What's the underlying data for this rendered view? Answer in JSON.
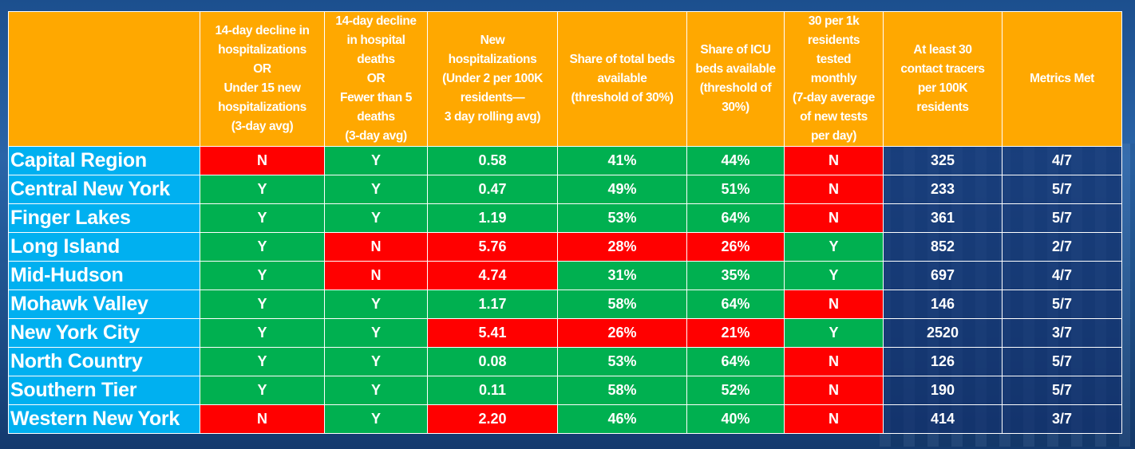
{
  "headers": [
    "",
    "14-day decline in hospitalizations OR Under 15 new hospitalizations (3-day avg)",
    "14-day decline in hospital deaths OR Fewer than 5 deaths (3-day avg)",
    "New hospitalizations (Under 2 per 100K residents— 3 day rolling avg)",
    "Share of total beds available (threshold of 30%)",
    "Share of ICU beds available (threshold of 30%)",
    "30 per 1k residents tested monthly (7-day average of new tests per day)",
    "At least 30 contact tracers per 100K residents",
    "Metrics Met"
  ],
  "colors": {
    "header": "#ffa800",
    "region": "#00b0f0",
    "pass": "#00b050",
    "fail": "#ff0000"
  },
  "rows": [
    {
      "region": "Capital Region",
      "cells": [
        [
          "N",
          "N"
        ],
        [
          "Y",
          "Y"
        ],
        [
          "0.58",
          "Y"
        ],
        [
          "41%",
          "Y"
        ],
        [
          "44%",
          "Y"
        ],
        [
          "N",
          "N"
        ]
      ],
      "tracers": "325",
      "met": "4/7"
    },
    {
      "region": "Central New York",
      "cells": [
        [
          "Y",
          "Y"
        ],
        [
          "Y",
          "Y"
        ],
        [
          "0.47",
          "Y"
        ],
        [
          "49%",
          "Y"
        ],
        [
          "51%",
          "Y"
        ],
        [
          "N",
          "N"
        ]
      ],
      "tracers": "233",
      "met": "5/7"
    },
    {
      "region": "Finger Lakes",
      "cells": [
        [
          "Y",
          "Y"
        ],
        [
          "Y",
          "Y"
        ],
        [
          "1.19",
          "Y"
        ],
        [
          "53%",
          "Y"
        ],
        [
          "64%",
          "Y"
        ],
        [
          "N",
          "N"
        ]
      ],
      "tracers": "361",
      "met": "5/7"
    },
    {
      "region": "Long Island",
      "cells": [
        [
          "Y",
          "Y"
        ],
        [
          "N",
          "N"
        ],
        [
          "5.76",
          "N"
        ],
        [
          "28%",
          "N"
        ],
        [
          "26%",
          "N"
        ],
        [
          "Y",
          "Y"
        ]
      ],
      "tracers": "852",
      "met": "2/7"
    },
    {
      "region": "Mid-Hudson",
      "cells": [
        [
          "Y",
          "Y"
        ],
        [
          "N",
          "N"
        ],
        [
          "4.74",
          "N"
        ],
        [
          "31%",
          "Y"
        ],
        [
          "35%",
          "Y"
        ],
        [
          "Y",
          "Y"
        ]
      ],
      "tracers": "697",
      "met": "4/7"
    },
    {
      "region": "Mohawk Valley",
      "cells": [
        [
          "Y",
          "Y"
        ],
        [
          "Y",
          "Y"
        ],
        [
          "1.17",
          "Y"
        ],
        [
          "58%",
          "Y"
        ],
        [
          "64%",
          "Y"
        ],
        [
          "N",
          "N"
        ]
      ],
      "tracers": "146",
      "met": "5/7"
    },
    {
      "region": "New York City",
      "cells": [
        [
          "Y",
          "Y"
        ],
        [
          "Y",
          "Y"
        ],
        [
          "5.41",
          "N"
        ],
        [
          "26%",
          "N"
        ],
        [
          "21%",
          "N"
        ],
        [
          "Y",
          "Y"
        ]
      ],
      "tracers": "2520",
      "met": "3/7"
    },
    {
      "region": "North Country",
      "cells": [
        [
          "Y",
          "Y"
        ],
        [
          "Y",
          "Y"
        ],
        [
          "0.08",
          "Y"
        ],
        [
          "53%",
          "Y"
        ],
        [
          "64%",
          "Y"
        ],
        [
          "N",
          "N"
        ]
      ],
      "tracers": "126",
      "met": "5/7"
    },
    {
      "region": "Southern Tier",
      "cells": [
        [
          "Y",
          "Y"
        ],
        [
          "Y",
          "Y"
        ],
        [
          "0.11",
          "Y"
        ],
        [
          "58%",
          "Y"
        ],
        [
          "52%",
          "Y"
        ],
        [
          "N",
          "N"
        ]
      ],
      "tracers": "190",
      "met": "5/7"
    },
    {
      "region": "Western New York",
      "cells": [
        [
          "N",
          "N"
        ],
        [
          "Y",
          "Y"
        ],
        [
          "2.20",
          "N"
        ],
        [
          "46%",
          "Y"
        ],
        [
          "40%",
          "Y"
        ],
        [
          "N",
          "N"
        ]
      ],
      "tracers": "414",
      "met": "3/7"
    }
  ]
}
